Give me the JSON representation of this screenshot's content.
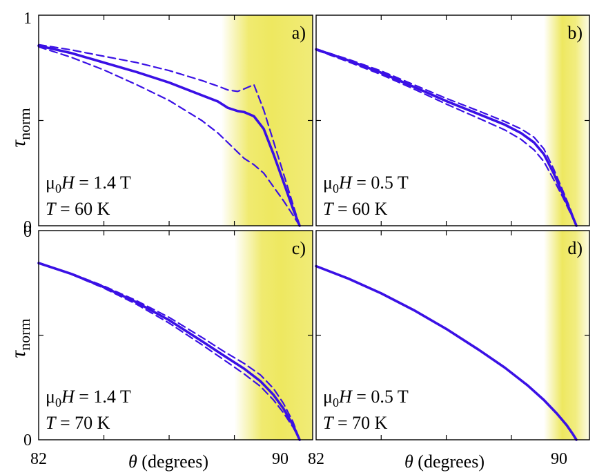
{
  "figure": {
    "ylabel": "τ",
    "ylabel_sub": "norm",
    "xlabel_symbol": "θ",
    "xlabel_text": " (degrees)",
    "x_tick_labels": [
      "82",
      "90"
    ],
    "y_tick_labels_top": [
      "1",
      "0"
    ],
    "y_tick_labels_bottom": [
      "0",
      "0"
    ]
  },
  "colors": {
    "curve": "#3a10e5",
    "band": "#eee860",
    "frame": "#000000"
  },
  "chart_data": [
    {
      "type": "line",
      "panel": "a)",
      "field_label": "1.4 T",
      "temp_label": "60 K",
      "xlim": [
        82,
        90.4
      ],
      "ylim": [
        0,
        1
      ],
      "band": [
        87.6,
        90.4
      ],
      "series": [
        {
          "name": "upper",
          "style": "dashed",
          "x": [
            82,
            83,
            84,
            85,
            86,
            87,
            87.5,
            87.8,
            88.1,
            88.3,
            88.6,
            88.9,
            89.2,
            89.5,
            89.8,
            90.0
          ],
          "y": [
            0.86,
            0.835,
            0.805,
            0.775,
            0.737,
            0.69,
            0.663,
            0.645,
            0.638,
            0.65,
            0.67,
            0.55,
            0.4,
            0.25,
            0.1,
            0.0
          ]
        },
        {
          "name": "center",
          "style": "solid",
          "x": [
            82,
            83,
            84,
            85,
            86,
            87,
            87.5,
            87.8,
            88.1,
            88.3,
            88.6,
            88.9,
            89.2,
            89.5,
            89.8,
            90.0
          ],
          "y": [
            0.855,
            0.82,
            0.775,
            0.73,
            0.68,
            0.62,
            0.59,
            0.56,
            0.545,
            0.54,
            0.52,
            0.46,
            0.34,
            0.21,
            0.08,
            0.0
          ]
        },
        {
          "name": "lower",
          "style": "dashed",
          "x": [
            82,
            83,
            84,
            85,
            86,
            87,
            87.5,
            87.8,
            88.1,
            88.3,
            88.6,
            88.9,
            89.2,
            89.5,
            89.8,
            90.0
          ],
          "y": [
            0.85,
            0.8,
            0.74,
            0.67,
            0.595,
            0.5,
            0.44,
            0.395,
            0.35,
            0.32,
            0.29,
            0.25,
            0.185,
            0.12,
            0.05,
            0.0
          ]
        }
      ]
    },
    {
      "type": "line",
      "panel": "b)",
      "field_label": "0.5 T",
      "temp_label": "60 K",
      "xlim": [
        82,
        90.4
      ],
      "ylim": [
        0,
        1
      ],
      "band": [
        89.0,
        90.4
      ],
      "series": [
        {
          "name": "upper",
          "style": "dashed",
          "x": [
            82,
            83,
            84,
            85,
            86,
            87,
            87.8,
            88.3,
            88.7,
            89.0,
            89.3,
            89.6,
            89.8,
            90.0
          ],
          "y": [
            0.84,
            0.79,
            0.735,
            0.67,
            0.605,
            0.545,
            0.495,
            0.46,
            0.42,
            0.365,
            0.27,
            0.16,
            0.085,
            0.0
          ]
        },
        {
          "name": "center",
          "style": "solid",
          "x": [
            82,
            83,
            84,
            85,
            86,
            87,
            87.8,
            88.3,
            88.7,
            89.0,
            89.3,
            89.6,
            89.8,
            90.0
          ],
          "y": [
            0.838,
            0.785,
            0.727,
            0.66,
            0.592,
            0.53,
            0.48,
            0.44,
            0.395,
            0.34,
            0.25,
            0.145,
            0.075,
            0.0
          ]
        },
        {
          "name": "lower",
          "style": "dashed",
          "x": [
            82,
            83,
            84,
            85,
            86,
            87,
            87.8,
            88.3,
            88.7,
            89.0,
            89.3,
            89.6,
            89.8,
            90.0
          ],
          "y": [
            0.835,
            0.778,
            0.718,
            0.65,
            0.578,
            0.51,
            0.455,
            0.41,
            0.36,
            0.305,
            0.22,
            0.13,
            0.065,
            0.0
          ]
        }
      ]
    },
    {
      "type": "line",
      "panel": "c)",
      "field_label": "1.4 T",
      "temp_label": "70 K",
      "xlim": [
        82,
        90.4
      ],
      "ylim": [
        0,
        1
      ],
      "band": [
        88.0,
        90.4
      ],
      "series": [
        {
          "name": "upper",
          "style": "dashed",
          "x": [
            82,
            83,
            84,
            85,
            86,
            87,
            87.7,
            88.3,
            88.8,
            89.2,
            89.5,
            89.8,
            90.0
          ],
          "y": [
            0.845,
            0.795,
            0.735,
            0.665,
            0.585,
            0.49,
            0.42,
            0.365,
            0.31,
            0.245,
            0.175,
            0.085,
            0.0
          ]
        },
        {
          "name": "center",
          "style": "solid",
          "x": [
            82,
            83,
            84,
            85,
            86,
            87,
            87.7,
            88.3,
            88.8,
            89.2,
            89.5,
            89.8,
            90.0
          ],
          "y": [
            0.845,
            0.793,
            0.73,
            0.657,
            0.572,
            0.472,
            0.4,
            0.34,
            0.28,
            0.215,
            0.15,
            0.07,
            0.0
          ]
        },
        {
          "name": "lower",
          "style": "dashed",
          "x": [
            82,
            83,
            84,
            85,
            86,
            87,
            87.7,
            88.3,
            88.8,
            89.2,
            89.5,
            89.8,
            90.0
          ],
          "y": [
            0.845,
            0.791,
            0.725,
            0.648,
            0.558,
            0.455,
            0.38,
            0.315,
            0.255,
            0.19,
            0.13,
            0.06,
            0.0
          ]
        }
      ]
    },
    {
      "type": "line",
      "panel": "d)",
      "field_label": "0.5 T",
      "temp_label": "70 K",
      "xlim": [
        82,
        90.4
      ],
      "ylim": [
        0,
        1
      ],
      "band": [
        89.0,
        90.4
      ],
      "series": [
        {
          "name": "single",
          "style": "solid",
          "x": [
            82,
            83,
            84,
            85,
            86,
            87,
            87.8,
            88.5,
            89.0,
            89.4,
            89.7,
            89.9,
            90.0
          ],
          "y": [
            0.83,
            0.77,
            0.7,
            0.62,
            0.53,
            0.43,
            0.345,
            0.26,
            0.19,
            0.125,
            0.07,
            0.025,
            0.0
          ]
        }
      ]
    }
  ]
}
